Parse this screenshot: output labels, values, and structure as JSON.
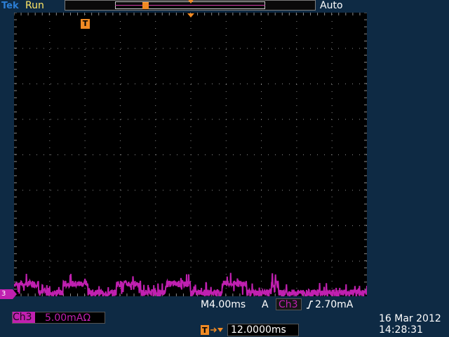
{
  "header": {
    "brand": "Tek",
    "run_status": "Run",
    "trigger_mode": "Auto"
  },
  "colors": {
    "background": "#0e2a44",
    "graticule_bg": "#000000",
    "grid_dots": "#8c8c8c",
    "channel_3": "#c020b0",
    "trigger_marker": "#f08a24",
    "run_status": "#ffe766",
    "brand": "#2c7fd6"
  },
  "icons": {
    "trigger_marker": "trigger-t-icon",
    "slope": "rising-edge-icon",
    "trigger_position": "trigger-position-arrow-icon"
  },
  "screen": {
    "trigger_marker_label": "T",
    "channel_marker_label": "3"
  },
  "channel": {
    "name": "Ch3",
    "scale": "5.00mAΩ"
  },
  "timebase": {
    "label": "M4.00ms"
  },
  "trigger": {
    "type": "A",
    "source": "Ch3",
    "level": "2.70mA",
    "position": "12.0000ms"
  },
  "datetime": {
    "date": "16 Mar  2012",
    "time": "14:28:31"
  },
  "chart_data": {
    "type": "line",
    "title": "",
    "xlabel": "",
    "ylabel": "",
    "divisions": {
      "x": 10,
      "y": 8
    },
    "xlim": [
      0,
      10
    ],
    "ylim": [
      -4,
      4
    ],
    "series": [
      {
        "x": [
          0,
          0.7,
          1.4,
          2.1,
          2.9,
          3.6,
          4.3,
          5.0,
          5.9,
          6.6,
          7.3,
          7.5,
          10
        ],
        "y": [
          -3.65,
          -3.9,
          -3.65,
          -3.9,
          -3.65,
          -3.9,
          -3.65,
          -3.9,
          -3.65,
          -3.9,
          -3.65,
          -3.9,
          -3.65
        ]
      }
    ]
  }
}
